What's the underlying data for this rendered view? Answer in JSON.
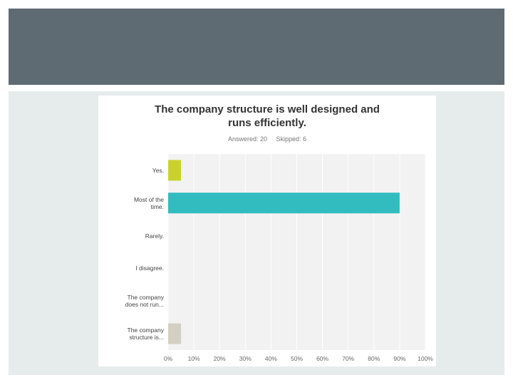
{
  "colors": {
    "header_band": "#5e6b73",
    "panel": "#e6ecec",
    "plot_background": "#f2f2f2",
    "grid": "#ffffff"
  },
  "chart_data": {
    "type": "bar",
    "orientation": "horizontal",
    "title_lines": [
      "The company structure is well designed and",
      "runs efficiently."
    ],
    "answered": "Answered: 20",
    "skipped": "Skipped: 6",
    "categories": [
      "Yes.",
      "Most of the time.",
      "Rarely.",
      "I disagree.",
      "The company does not run...",
      "The company structure is..."
    ],
    "category_lines": [
      [
        "Yes."
      ],
      [
        "Most of the",
        "time."
      ],
      [
        "Rarely."
      ],
      [
        "I disagree."
      ],
      [
        "The company",
        "does not run..."
      ],
      [
        "The company",
        "structure is..."
      ]
    ],
    "values": [
      5,
      90,
      0,
      0,
      0,
      5
    ],
    "bar_colors": [
      "#c9d22c",
      "#32bcbf",
      "#c9d22c",
      "#c9d22c",
      "#c9d22c",
      "#d3cfc3"
    ],
    "xlim": [
      0,
      100
    ],
    "xticks": [
      0,
      10,
      20,
      30,
      40,
      50,
      60,
      70,
      80,
      90,
      100
    ],
    "xtick_labels": [
      "0%",
      "10%",
      "20%",
      "30%",
      "40%",
      "50%",
      "60%",
      "70%",
      "80%",
      "90%",
      "100%"
    ],
    "grid": true,
    "legend": "none"
  }
}
